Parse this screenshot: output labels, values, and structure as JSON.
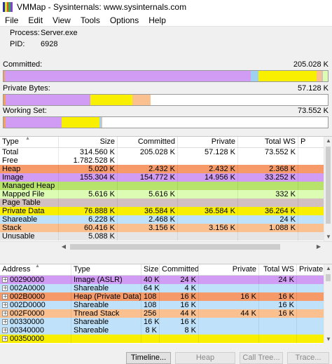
{
  "window": {
    "title": "VMMap - Sysinternals: www.sysinternals.com",
    "icon_colors": [
      "#2f2fb4",
      "#d4ea1e",
      "#e0542c",
      "#31b04a",
      "#8a3fd4"
    ]
  },
  "menu": [
    "File",
    "Edit",
    "View",
    "Tools",
    "Options",
    "Help"
  ],
  "process": {
    "process_label": "Process:",
    "process_value": "Server.exe",
    "pid_label": "PID:",
    "pid_value": "6928"
  },
  "summary_bars": [
    {
      "label": "Committed:",
      "value": "205.028 K",
      "segments": [
        {
          "type": "Heap",
          "color": "#f4a060",
          "fraction": 0.005
        },
        {
          "type": "Image",
          "color": "#d09cf4",
          "fraction": 0.757
        },
        {
          "type": "Shareable",
          "color": "#9fd0f0",
          "fraction": 0.024
        },
        {
          "type": "Private Data",
          "color": "#f8f000",
          "fraction": 0.18
        },
        {
          "type": "Stack",
          "color": "#fbc090",
          "fraction": 0.015
        },
        {
          "type": "Page Table",
          "color": "#d2bfbf",
          "fraction": 0.004
        },
        {
          "type": "Mapped File",
          "color": "#dcfcb4",
          "fraction": 0.015
        }
      ]
    },
    {
      "label": "Private Bytes:",
      "value": "57.128 K",
      "segments": [
        {
          "type": "Heap",
          "color": "#f4a060",
          "fraction": 0.006
        },
        {
          "type": "Image",
          "color": "#d09cf4",
          "fraction": 0.262
        },
        {
          "type": "Private Data",
          "color": "#f8f000",
          "fraction": 0.13
        },
        {
          "type": "Stack",
          "color": "#fbc090",
          "fraction": 0.055
        }
      ]
    },
    {
      "label": "Working Set:",
      "value": "73.552 K",
      "segments": [
        {
          "type": "Heap",
          "color": "#f4a060",
          "fraction": 0.006
        },
        {
          "type": "Image",
          "color": "#d09cf4",
          "fraction": 0.174
        },
        {
          "type": "Private Data",
          "color": "#f8f000",
          "fraction": 0.117
        },
        {
          "type": "Shareable",
          "color": "#9fd0f0",
          "fraction": 0.005
        },
        {
          "type": "Stack",
          "color": "#fbc090",
          "fraction": 0.003
        }
      ]
    }
  ],
  "type_table": {
    "columns": [
      "Type",
      "Size",
      "Committed",
      "Private",
      "Total WS",
      "P"
    ],
    "rows": [
      {
        "type": "Total",
        "size": "314.560 K",
        "committed": "205.028 K",
        "private": "57.128 K",
        "total_ws": "73.552 K",
        "color": "#ffffff"
      },
      {
        "type": "Free",
        "size": "1.782.528 K",
        "committed": "",
        "private": "",
        "total_ws": "",
        "color": "#ffffff"
      },
      {
        "type": "Heap",
        "size": "5.020 K",
        "committed": "2.432 K",
        "private": "2.432 K",
        "total_ws": "2.368 K",
        "color": "#f69a6a"
      },
      {
        "type": "Image",
        "size": "155.304 K",
        "committed": "154.772 K",
        "private": "14.956 K",
        "total_ws": "33.252 K",
        "color": "#d09cf4"
      },
      {
        "type": "Managed Heap",
        "size": "",
        "committed": "",
        "private": "",
        "total_ws": "",
        "color": "#b7e36c"
      },
      {
        "type": "Mapped File",
        "size": "5.616 K",
        "committed": "5.616 K",
        "private": "",
        "total_ws": "332 K",
        "color": "#dcfcb4"
      },
      {
        "type": "Page Table",
        "size": "",
        "committed": "",
        "private": "",
        "total_ws": "",
        "color": "#d2bfbf"
      },
      {
        "type": "Private Data",
        "size": "76.888 K",
        "committed": "36.584 K",
        "private": "36.584 K",
        "total_ws": "36.264 K",
        "color": "#f8f000"
      },
      {
        "type": "Shareable",
        "size": "6.228 K",
        "committed": "2.468 K",
        "private": "",
        "total_ws": "24 K",
        "color": "#bfe2fa"
      },
      {
        "type": "Stack",
        "size": "60.416 K",
        "committed": "3.156 K",
        "private": "3.156 K",
        "total_ws": "1.088 K",
        "color": "#fbc090"
      },
      {
        "type": "Unusable",
        "size": "5.088 K",
        "committed": "",
        "private": "",
        "total_ws": "",
        "color": "#e6e6e6"
      }
    ]
  },
  "address_table": {
    "columns": [
      "Address",
      "Type",
      "Size",
      "Committed",
      "Private",
      "Total WS",
      "Private"
    ],
    "rows": [
      {
        "address": "00290000",
        "type": "Image (ASLR)",
        "size": "40 K",
        "committed": "24 K",
        "private": "",
        "total_ws": "24 K",
        "color": "#d09cf4"
      },
      {
        "address": "002A0000",
        "type": "Shareable",
        "size": "64 K",
        "committed": "4 K",
        "private": "",
        "total_ws": "",
        "color": "#bfe2fa"
      },
      {
        "address": "002B0000",
        "type": "Heap (Private Data)",
        "size": "108 K",
        "committed": "16 K",
        "private": "16 K",
        "total_ws": "16 K",
        "color": "#f69a6a"
      },
      {
        "address": "002D0000",
        "type": "Shareable",
        "size": "108 K",
        "committed": "16 K",
        "private": "",
        "total_ws": "16 K",
        "color": "#bfe2fa"
      },
      {
        "address": "002F0000",
        "type": "Thread Stack",
        "size": "256 K",
        "committed": "44 K",
        "private": "44 K",
        "total_ws": "16 K",
        "color": "#fbc090"
      },
      {
        "address": "00330000",
        "type": "Shareable",
        "size": "16 K",
        "committed": "16 K",
        "private": "",
        "total_ws": "",
        "color": "#bfe2fa"
      },
      {
        "address": "00340000",
        "type": "Shareable",
        "size": "8 K",
        "committed": "8 K",
        "private": "",
        "total_ws": "",
        "color": "#bfe2fa"
      },
      {
        "address": "00350000",
        "type": "",
        "size": "",
        "committed": "",
        "private": "",
        "total_ws": "",
        "color": "#f8f000"
      }
    ]
  },
  "buttons": [
    {
      "label": "Timeline...",
      "enabled": true
    },
    {
      "label": "Heap Allocations...",
      "enabled": false
    },
    {
      "label": "Call Tree...",
      "enabled": false
    },
    {
      "label": "Trace...",
      "enabled": false
    }
  ]
}
